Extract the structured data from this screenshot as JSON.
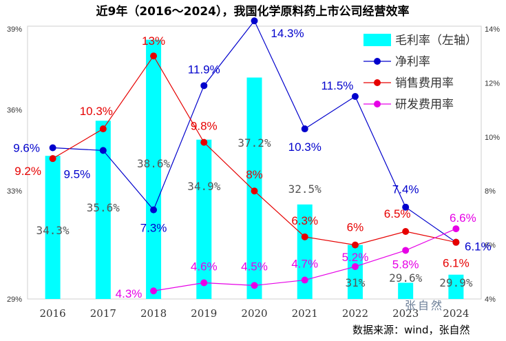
{
  "title": "近9年（2016～2024），我国化学原料药上市公司经营效率",
  "source": "数据来源：wind，张自然",
  "watermark": "张自然",
  "colors": {
    "bar": "#00ffff",
    "net": "#0000cc",
    "sales": "#e60000",
    "rd": "#e600e6"
  },
  "chart_data": {
    "type": "bar+line",
    "categories": [
      "2016",
      "2017",
      "2018",
      "2019",
      "2020",
      "2021",
      "2022",
      "2023",
      "2024"
    ],
    "left_axis": {
      "range": [
        29,
        39
      ],
      "ticks": [
        "29%",
        "33%",
        "36%",
        "39%"
      ],
      "tick_values": [
        29,
        33,
        36,
        39
      ]
    },
    "right_axis": {
      "range": [
        4,
        14
      ],
      "ticks": [
        "4%",
        "6%",
        "8%",
        "10%",
        "12%",
        "14%"
      ],
      "tick_values": [
        4,
        6,
        8,
        10,
        12,
        14
      ]
    },
    "legend": {
      "items": [
        "毛利率（左轴）",
        "净利率",
        "销售费用率",
        "研发费用率"
      ],
      "placement": "top-right"
    },
    "bar_series": {
      "name": "毛利率（左轴）",
      "axis": "left",
      "values": [
        34.3,
        35.6,
        38.6,
        34.9,
        37.2,
        32.5,
        31,
        29.6,
        29.9
      ],
      "labels": [
        "34.3%",
        "35.6%",
        "38.6%",
        "34.9%",
        "37.2%",
        "32.5%",
        "31%",
        "29.6%",
        "29.9%"
      ]
    },
    "line_series": [
      {
        "name": "净利率",
        "axis": "right",
        "values": [
          9.6,
          9.5,
          7.3,
          11.9,
          14.3,
          10.3,
          11.5,
          7.4,
          6.1
        ],
        "labels": [
          "9.6%",
          "9.5%",
          "7.3%",
          "11.9%",
          "14.3%",
          "10.3%",
          "11.5%",
          "7.4%",
          "6.1%"
        ]
      },
      {
        "name": "销售费用率",
        "axis": "right",
        "values": [
          9.2,
          10.3,
          13,
          9.8,
          8,
          6.3,
          6,
          6.5,
          6.1
        ],
        "labels": [
          "9.2%",
          "10.3%",
          "13%",
          "9.8%",
          "8%",
          "6.3%",
          "6%",
          "6.5%",
          "6.1%"
        ]
      },
      {
        "name": "研发费用率",
        "axis": "right",
        "values": [
          null,
          null,
          4.3,
          4.6,
          4.5,
          4.7,
          5.2,
          5.8,
          6.6
        ],
        "labels": [
          "",
          "",
          "4.3%",
          "4.6%",
          "4.5%",
          "4.7%",
          "5.2%",
          "5.8%",
          "6.6%"
        ]
      }
    ]
  }
}
